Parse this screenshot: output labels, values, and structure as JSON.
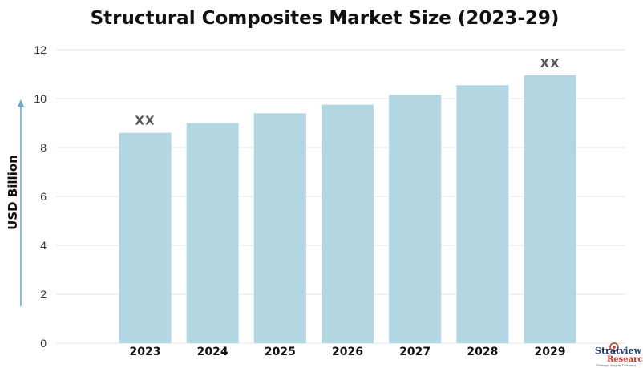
{
  "chart_data": {
    "type": "bar",
    "title": "Structural Composites Market Size (2023-29)",
    "xlabel": "",
    "ylabel": "USD Billion",
    "categories": [
      "2023",
      "2024",
      "2025",
      "2026",
      "2027",
      "2028",
      "2029"
    ],
    "values": [
      8.6,
      9.0,
      9.4,
      9.75,
      10.15,
      10.55,
      10.95
    ],
    "ylim": [
      0,
      12
    ],
    "yticks": [
      "0",
      "2",
      "4",
      "6",
      "8",
      "10",
      "12"
    ],
    "data_labels": [
      {
        "category": "2023",
        "text": "XX"
      },
      {
        "category": "2029",
        "text": "XX"
      }
    ],
    "grid": true,
    "bar_color": "#b3d6e3",
    "axis_arrow_color": "#6aa9c4"
  },
  "logo": {
    "name": "Stratview",
    "sub": "Research",
    "tagline": "Strategic Insights Delivered"
  }
}
